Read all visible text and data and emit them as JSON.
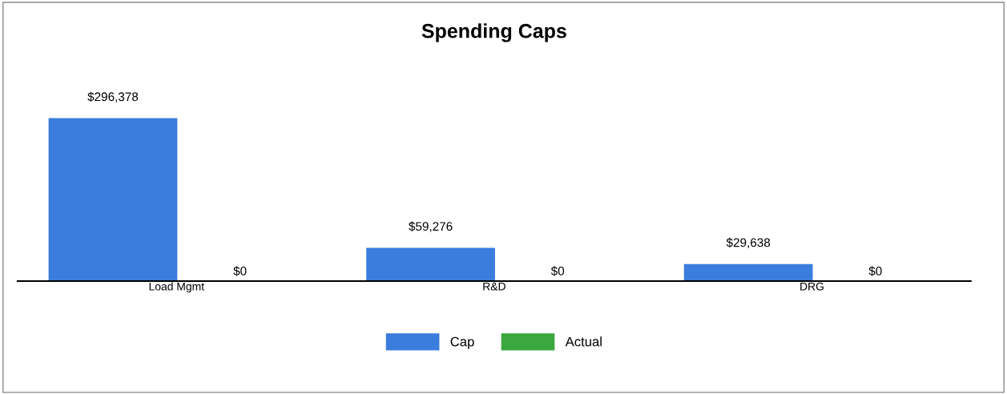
{
  "chart_data": {
    "type": "bar",
    "title": "Spending Caps",
    "categories": [
      "Load Mgmt",
      "R&D",
      "DRG"
    ],
    "series": [
      {
        "name": "Cap",
        "color": "#3b7ddd",
        "values": [
          296378,
          59276,
          29638
        ],
        "value_labels": [
          "$296,378",
          "$59,276",
          "$29,638"
        ]
      },
      {
        "name": "Actual",
        "color": "#3aa83f",
        "values": [
          0,
          0,
          0
        ],
        "value_labels": [
          "$0",
          "$0",
          "$0"
        ]
      }
    ],
    "legend": "bottom",
    "grid": false
  }
}
